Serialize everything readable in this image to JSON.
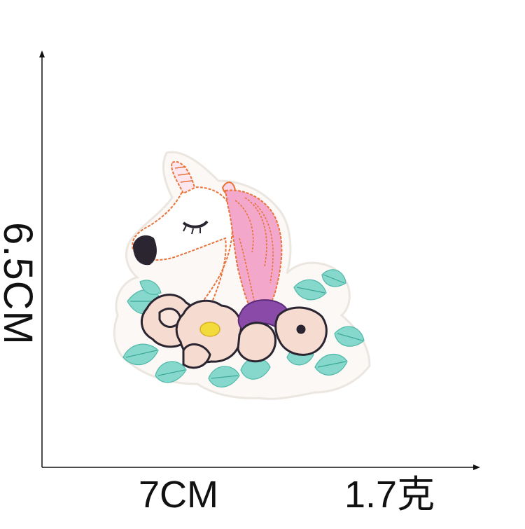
{
  "dimensions": {
    "height_label": "6.5CM",
    "width_label": "7CM",
    "weight_label": "1.7克"
  },
  "colors": {
    "axis": "#111111",
    "patch_border": "#f3eee9",
    "mane_pink": "#f2a7c9",
    "outline_orange": "#e8723a",
    "leaf_teal": "#7fd4c8",
    "flower_peach": "#f6d8cc",
    "flower_purple": "#8a4aa8",
    "center_yellow": "#f2dc3c"
  }
}
